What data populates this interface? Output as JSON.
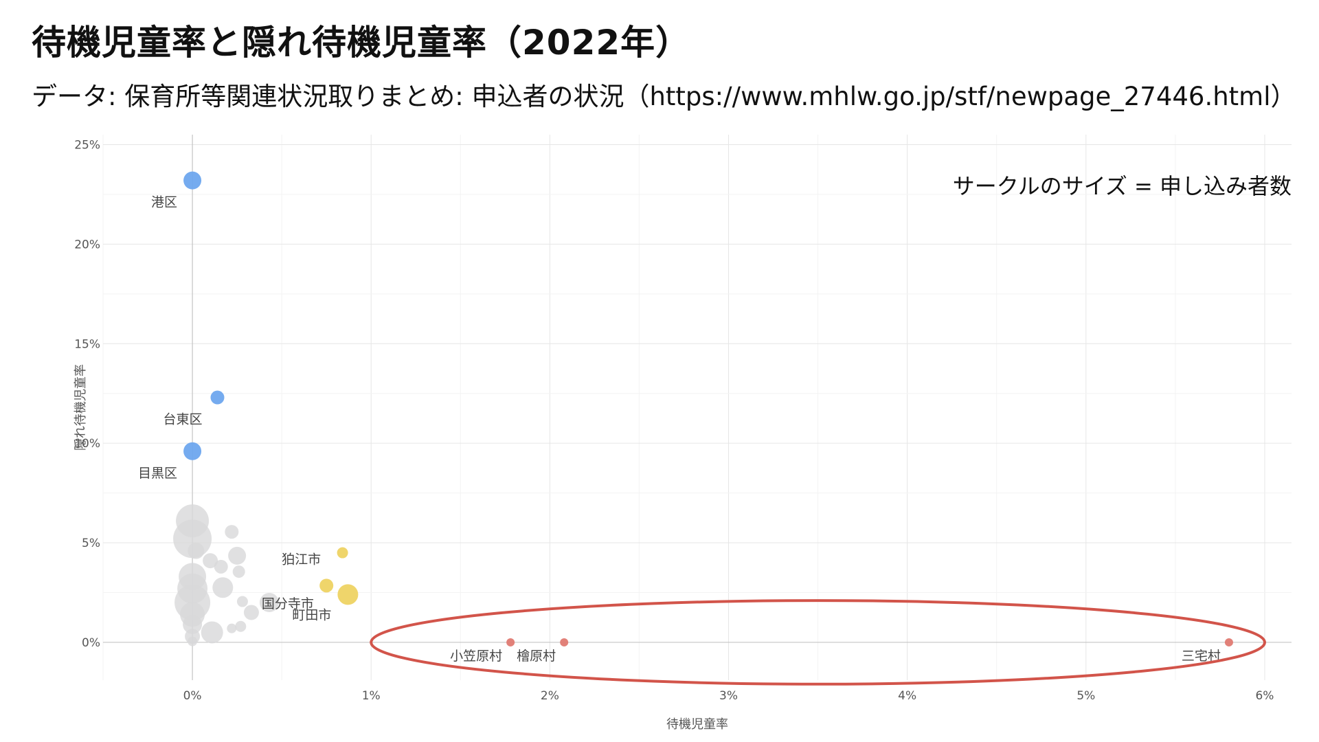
{
  "chart_data": {
    "type": "scatter",
    "title": "待機児童率と隠れ待機児童率（2022年）",
    "subtitle": "データ: 保育所等関連状況取りまとめ: 申込者の状況（https://www.mhlw.go.jp/stf/newpage_27446.html）",
    "xlabel": "待機児童率",
    "ylabel": "隠れ待機児童率",
    "xlim": [
      -0.5,
      6.15
    ],
    "ylim": [
      -1.9,
      25.5
    ],
    "x_ticks": [
      0,
      1,
      2,
      3,
      4,
      5,
      6
    ],
    "x_tick_labels": [
      "0%",
      "1%",
      "2%",
      "3%",
      "4%",
      "5%",
      "6%"
    ],
    "y_ticks": [
      0,
      5,
      10,
      15,
      20,
      25
    ],
    "y_tick_labels": [
      "0%",
      "5%",
      "10%",
      "15%",
      "20%",
      "25%"
    ],
    "grid": true,
    "annotation": "サークルのサイズ = 申し込み者数",
    "colors": {
      "blue": "#6ea6ee",
      "yellow": "#eed363",
      "red": "#e07a72",
      "gray": "#d8d8da",
      "ellipse": "#d2544a"
    },
    "points": [
      {
        "x": 0.0,
        "y": 23.2,
        "size": 13,
        "color": "blue",
        "label": "港区"
      },
      {
        "x": 0.14,
        "y": 12.3,
        "size": 10,
        "color": "blue",
        "label": "台東区"
      },
      {
        "x": 0.0,
        "y": 9.6,
        "size": 13,
        "color": "blue",
        "label": "目黒区"
      },
      {
        "x": 0.84,
        "y": 4.5,
        "size": 8,
        "color": "yellow",
        "label": ""
      },
      {
        "x": 0.75,
        "y": 2.85,
        "size": 10,
        "color": "yellow",
        "label": "狛江市"
      },
      {
        "x": 0.87,
        "y": 2.4,
        "size": 15,
        "color": "yellow",
        "label": "町田市"
      },
      {
        "x": 1.78,
        "y": 0.0,
        "size": 6,
        "color": "red",
        "label": "小笠原村"
      },
      {
        "x": 2.08,
        "y": 0.0,
        "size": 6,
        "color": "red",
        "label": "檜原村"
      },
      {
        "x": 5.8,
        "y": 0.0,
        "size": 6,
        "color": "red",
        "label": "三宅村"
      },
      {
        "x": 0.0,
        "y": 6.1,
        "size": 24,
        "color": "gray",
        "label": ""
      },
      {
        "x": 0.0,
        "y": 5.2,
        "size": 28,
        "color": "gray",
        "label": ""
      },
      {
        "x": 0.02,
        "y": 4.6,
        "size": 12,
        "color": "gray",
        "label": ""
      },
      {
        "x": 0.22,
        "y": 5.55,
        "size": 10,
        "color": "gray",
        "label": ""
      },
      {
        "x": 0.25,
        "y": 4.35,
        "size": 13,
        "color": "gray",
        "label": ""
      },
      {
        "x": 0.1,
        "y": 4.1,
        "size": 11,
        "color": "gray",
        "label": ""
      },
      {
        "x": 0.16,
        "y": 3.8,
        "size": 10,
        "color": "gray",
        "label": ""
      },
      {
        "x": 0.26,
        "y": 3.55,
        "size": 9,
        "color": "gray",
        "label": ""
      },
      {
        "x": 0.0,
        "y": 3.3,
        "size": 20,
        "color": "gray",
        "label": ""
      },
      {
        "x": 0.0,
        "y": 2.7,
        "size": 22,
        "color": "gray",
        "label": ""
      },
      {
        "x": 0.17,
        "y": 2.75,
        "size": 15,
        "color": "gray",
        "label": ""
      },
      {
        "x": 0.0,
        "y": 2.0,
        "size": 26,
        "color": "gray",
        "label": ""
      },
      {
        "x": 0.0,
        "y": 1.4,
        "size": 18,
        "color": "gray",
        "label": ""
      },
      {
        "x": 0.28,
        "y": 2.05,
        "size": 8,
        "color": "gray",
        "label": ""
      },
      {
        "x": 0.43,
        "y": 2.0,
        "size": 14,
        "color": "gray",
        "label": "国分寺市"
      },
      {
        "x": 0.33,
        "y": 1.5,
        "size": 11,
        "color": "gray",
        "label": ""
      },
      {
        "x": 0.0,
        "y": 0.9,
        "size": 14,
        "color": "gray",
        "label": ""
      },
      {
        "x": 0.11,
        "y": 0.5,
        "size": 16,
        "color": "gray",
        "label": ""
      },
      {
        "x": 0.27,
        "y": 0.8,
        "size": 8,
        "color": "gray",
        "label": ""
      },
      {
        "x": 0.22,
        "y": 0.7,
        "size": 7,
        "color": "gray",
        "label": ""
      },
      {
        "x": 0.0,
        "y": 0.3,
        "size": 11,
        "color": "gray",
        "label": ""
      },
      {
        "x": 0.0,
        "y": 0.05,
        "size": 7,
        "color": "gray",
        "label": ""
      }
    ],
    "highlight_ellipse": {
      "cx": 3.5,
      "cy": 0.0,
      "rx": 2.5,
      "ry": 2.1
    }
  }
}
